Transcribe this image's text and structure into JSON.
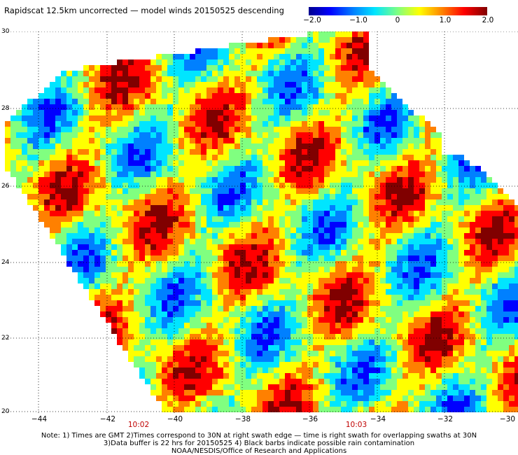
{
  "title": "Rapidscat 12.5km uncorrected — model winds 20150525 descending",
  "colorbar": {
    "ticks": [
      "−2.0",
      "−1.0",
      "0",
      "1.0",
      "2.0"
    ],
    "colors": [
      "#00008f",
      "#0000ff",
      "#0080ff",
      "#00e5ff",
      "#80ff80",
      "#ffff00",
      "#ff8000",
      "#ff0000",
      "#800000"
    ]
  },
  "axes": {
    "y_ticks": [
      "30",
      "28",
      "26",
      "24",
      "22",
      "20"
    ],
    "x_ticks": [
      "−44",
      "−42",
      "−40",
      "−38",
      "−36",
      "−34",
      "−32",
      "−30"
    ],
    "lat_range": [
      20,
      30
    ],
    "lon_range": [
      -45,
      -30
    ]
  },
  "times": [
    "10:02",
    "10:03"
  ],
  "notes": [
    "Note: 1) Times are GMT 2)Times correspond to 30N at right swath edge — time is right swath for overlapping swaths at 30N",
    "3)Data buffer is 22 hrs for 20150525 4) Black barbs indicate possible rain contamination",
    "NOAA/NESDIS/Office of Research and Applications"
  ]
}
